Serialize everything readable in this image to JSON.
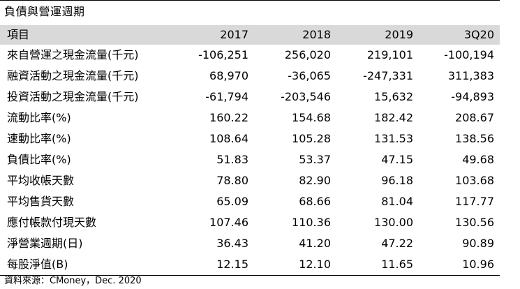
{
  "title": "負債與營運週期",
  "table": {
    "headers": [
      "項目",
      "2017",
      "2018",
      "2019",
      "3Q20"
    ],
    "rows": [
      [
        "來自營運之現金流量(千元)",
        "-106,251",
        "256,020",
        "219,101",
        "-100,194"
      ],
      [
        "融資活動之現金流量(千元)",
        "68,970",
        "-36,065",
        "-247,331",
        "311,383"
      ],
      [
        "投資活動之現金流量(千元)",
        "-61,794",
        "-203,546",
        "15,632",
        "-94,893"
      ],
      [
        "流動比率(%)",
        "160.22",
        "154.68",
        "182.42",
        "208.67"
      ],
      [
        "速動比率(%)",
        "108.64",
        "105.28",
        "131.53",
        "138.56"
      ],
      [
        "負債比率(%)",
        "51.83",
        "53.37",
        "47.15",
        "49.68"
      ],
      [
        "平均收帳天數",
        "78.80",
        "82.90",
        "96.18",
        "103.68"
      ],
      [
        "平均售貨天數",
        "65.09",
        "68.66",
        "81.04",
        "117.77"
      ],
      [
        "應付帳款付現天數",
        "107.46",
        "110.36",
        "130.00",
        "130.56"
      ],
      [
        "淨營業週期(日)",
        "36.43",
        "41.20",
        "47.22",
        "90.89"
      ],
      [
        "每股淨值(B)",
        "12.15",
        "12.10",
        "11.65",
        "10.96"
      ]
    ]
  },
  "source": "資料來源：CMoney，Dec. 2020",
  "colors": {
    "header_bg": "#d9d9d9",
    "text": "#000000",
    "background": "#ffffff"
  }
}
